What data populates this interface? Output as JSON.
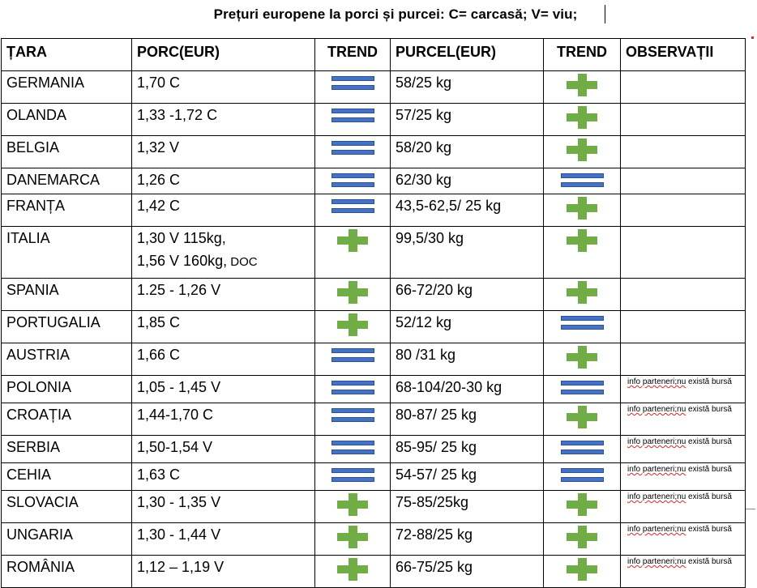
{
  "title": "Prețuri europene la porci și purcei: C= carcasă; V= viu;",
  "headers": {
    "country": "ȚARA",
    "pig": "PORC(EUR)",
    "trend1": "TREND",
    "piglet": "PURCEL(EUR)",
    "trend2": "TREND",
    "notes": "OBSERVAȚII"
  },
  "icons": {
    "stable": "equal-icon",
    "rising": "plus-icon",
    "stable_color": "#4472c4",
    "rising_color": "#70ad47"
  },
  "rows": [
    {
      "country": "GERMANIA",
      "pig": "1,70 C",
      "pig_trend": "stable",
      "piglet": "58/25 kg",
      "piglet_trend": "rising",
      "note": ""
    },
    {
      "country": "OLANDA",
      "pig": "1,33 -1,72 C",
      "pig_trend": "stable",
      "piglet": "57/25 kg",
      "piglet_trend": "rising",
      "note": ""
    },
    {
      "country": "BELGIA",
      "pig": "1,32 V",
      "pig_trend": "stable",
      "piglet": "58/20 kg",
      "piglet_trend": "rising",
      "note": ""
    },
    {
      "country": "DANEMARCA",
      "pig": "1,26 C",
      "pig_trend": "stable",
      "piglet": "62/30 kg",
      "piglet_trend": "stable",
      "note": ""
    },
    {
      "country": "FRANȚA",
      "pig": "1,42 C",
      "pig_trend": "stable",
      "piglet": "43,5-62,5/ 25 kg",
      "piglet_trend": "rising",
      "note": ""
    },
    {
      "country": "ITALIA",
      "pig": "1,30 V 115kg,",
      "pig_line2": "1,56 V 160kg,",
      "pig_line2_small": "DOC",
      "pig_trend": "rising",
      "piglet": "99,5/30 kg",
      "piglet_trend": "rising",
      "note": ""
    },
    {
      "country": "SPANIA",
      "pig": "1.25 - 1,26 V",
      "pig_trend": "rising",
      "piglet": "66-72/20 kg",
      "piglet_trend": "rising",
      "note": ""
    },
    {
      "country": "PORTUGALIA",
      "pig": "1,85 C",
      "pig_trend": "rising",
      "piglet": "52/12 kg",
      "piglet_trend": "stable",
      "note": ""
    },
    {
      "country": "AUSTRIA",
      "pig": "1,66 C",
      "pig_trend": "stable",
      "piglet": "80 /31 kg",
      "piglet_trend": "rising",
      "note": ""
    },
    {
      "country": "POLONIA",
      "pig": "1,05 - 1,45 V",
      "pig_trend": "stable",
      "piglet": "68-104/20-30 kg",
      "piglet_trend": "stable",
      "note_a": "info parteneri;nu",
      "note_b": " există bursă"
    },
    {
      "country": "CROAȚIA",
      "pig": "1,44-1,70 C",
      "pig_trend": "stable",
      "piglet": "80-87/ 25 kg",
      "piglet_trend": "rising",
      "note_a": "info parteneri;nu",
      "note_b": " există bursă"
    },
    {
      "country": "SERBIA",
      "pig": "1,50-1,54 V",
      "pig_trend": "stable",
      "piglet": "85-95/ 25 kg",
      "piglet_trend": "stable",
      "note_a": "info parteneri;nu",
      "note_b": " există bursă"
    },
    {
      "country": "CEHIA",
      "pig": "1,63 C",
      "pig_trend": "stable",
      "piglet": "54-57/ 25 kg",
      "piglet_trend": "stable",
      "note_a": "info parteneri;nu",
      "note_b": " există bursă"
    },
    {
      "country": "SLOVACIA",
      "pig": "1,30 - 1,35 V",
      "pig_trend": "rising",
      "piglet": "75-85/25kg",
      "piglet_trend": "rising",
      "note_a": "info parteneri;nu",
      "note_b": " există bursă"
    },
    {
      "country": "UNGARIA",
      "pig": "1,30 - 1,44 V",
      "pig_trend": "rising",
      "piglet": "72-88/25 kg",
      "piglet_trend": "rising",
      "note_a": "info parteneri;nu",
      "note_b": " există bursă"
    },
    {
      "country": "ROMÂNIA",
      "pig": "1,12 – 1,19 V",
      "pig_trend": "rising",
      "piglet": "66-75/25 kg",
      "piglet_trend": "rising",
      "note_a": "info parteneri;nu",
      "note_b": " există bursă"
    }
  ]
}
